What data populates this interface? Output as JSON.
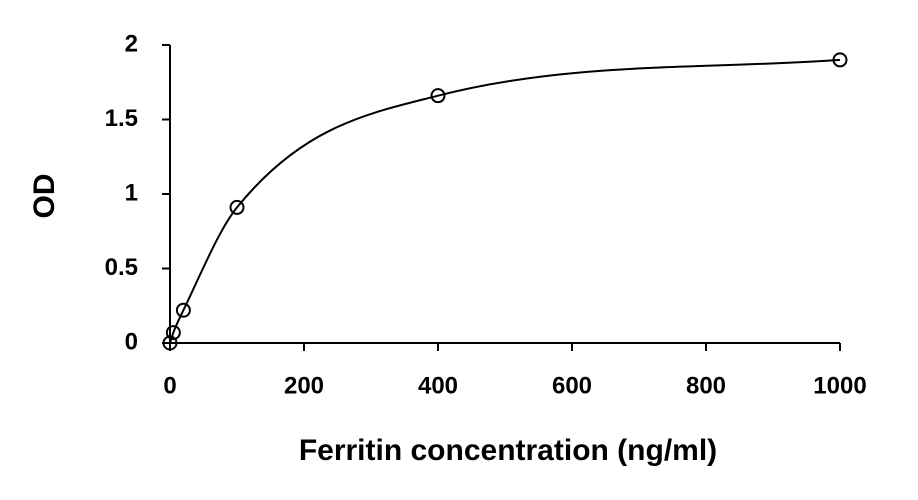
{
  "chart_data": {
    "type": "scatter",
    "x_label": "Ferritin concentration (ng/ml)",
    "y_label": "OD",
    "x": [
      0,
      5,
      20,
      100,
      400,
      1000
    ],
    "values": [
      0.0,
      0.07,
      0.22,
      0.91,
      1.66,
      1.9
    ],
    "color": "#000000",
    "line": "smooth",
    "marker": "open-circle",
    "xlim": [
      0,
      1000
    ],
    "xticks": [
      0,
      200,
      400,
      600,
      800,
      1000
    ],
    "ylim": [
      0,
      2
    ],
    "yticks": [
      0,
      0.5,
      1,
      1.5,
      2
    ],
    "grid": false
  }
}
